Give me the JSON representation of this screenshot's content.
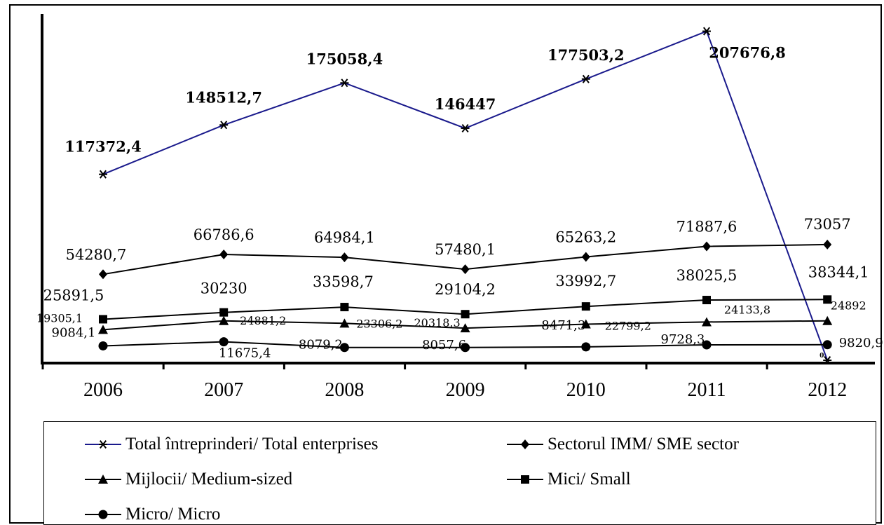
{
  "chart_data": {
    "type": "line",
    "categories": [
      "2006",
      "2007",
      "2008",
      "2009",
      "2010",
      "2011",
      "2012"
    ],
    "ylim": [
      0,
      215000
    ],
    "grid": false,
    "legend_position": "bottom",
    "series": [
      {
        "name": "Total întreprinderi/ Total enterprises",
        "color": "#1a1a8c",
        "marker": "asterisk",
        "values": [
          117372.4,
          148512.7,
          175058.4,
          146447,
          177503.2,
          207676.8,
          0
        ],
        "labels": [
          "117372,4",
          "148512,7",
          "175058,4",
          "146447",
          "177503,2",
          "207676,8",
          "0"
        ]
      },
      {
        "name": "Sectorul IMM/ SME sector",
        "color": "#000000",
        "marker": "diamond",
        "values": [
          54280.7,
          66786.6,
          64984.1,
          57480.1,
          65263.2,
          71887.6,
          73057
        ],
        "labels": [
          "54280,7",
          "66786,6",
          "64984,1",
          "57480,1",
          "65263,2",
          "71887,6",
          "73057"
        ]
      },
      {
        "name": "Mijlocii/ Medium-sized",
        "color": "#000000",
        "marker": "triangle",
        "values": [
          19305.1,
          24881.2,
          23306.2,
          20318.3,
          22799.2,
          24133.8,
          24892
        ],
        "labels": [
          "19305,1",
          "24881,2",
          "23306,2",
          "20318,3",
          "22799,2",
          "24133,8",
          "24892"
        ]
      },
      {
        "name": "Mici/ Small",
        "color": "#000000",
        "marker": "square",
        "values": [
          25891.5,
          30230,
          33598.7,
          29104.2,
          33992.7,
          38025.5,
          38344.1
        ],
        "labels": [
          "25891,5",
          "30230",
          "33598,7",
          "29104,2",
          "33992,7",
          "38025,5",
          "38344,1"
        ]
      },
      {
        "name": "Micro/ Micro",
        "color": "#000000",
        "marker": "circle",
        "values": [
          9084.1,
          11675.4,
          8079.2,
          8057.6,
          8471.3,
          9728.3,
          9820.9
        ],
        "labels": [
          "9084,1",
          "11675,4",
          "8079,2",
          "8057,6",
          "8471,3",
          "9728,3",
          "9820,9"
        ]
      }
    ]
  }
}
